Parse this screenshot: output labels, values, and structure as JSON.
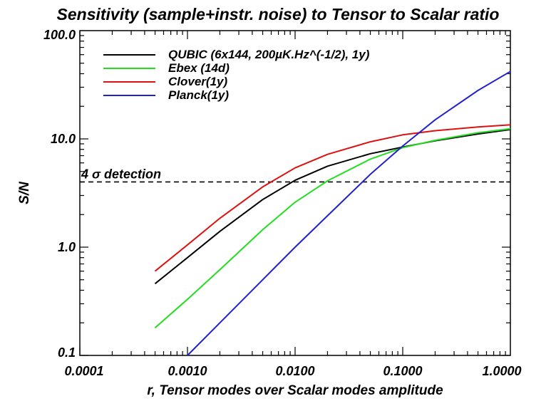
{
  "chart_data": {
    "type": "line",
    "title": "Sensitivity (sample+instr. noise) to Tensor to Scalar ratio",
    "xlabel": "r, Tensor modes over Scalar modes amplitude",
    "ylabel": "S/N",
    "x_scale": "log",
    "y_scale": "log",
    "xlim": [
      0.0001,
      1.0
    ],
    "ylim": [
      0.1,
      100.0
    ],
    "x_ticks": [
      0.0001,
      0.001,
      0.01,
      0.1,
      1.0
    ],
    "x_tick_labels": [
      "0.0001",
      "0.0010",
      "0.0100",
      "0.1000",
      "1.0000"
    ],
    "y_ticks": [
      0.1,
      1.0,
      10.0,
      100.0
    ],
    "y_tick_labels": [
      "0.1",
      "1.0",
      "10.0",
      "100.0"
    ],
    "grid": false,
    "legend_position": "top-left",
    "series": [
      {
        "name": "QUBIC (6x144, 200µK.Hz^(-1/2), 1y)",
        "color": "#000000",
        "x": [
          0.0005,
          0.001,
          0.002,
          0.005,
          0.01,
          0.02,
          0.05,
          0.1,
          0.2,
          0.5,
          1.0
        ],
        "y": [
          0.46,
          0.8,
          1.4,
          2.75,
          4.15,
          5.6,
          7.3,
          8.4,
          9.6,
          11.1,
          12.2
        ]
      },
      {
        "name": "Ebex (14d)",
        "color": "#22dd22",
        "x": [
          0.0005,
          0.001,
          0.002,
          0.005,
          0.01,
          0.02,
          0.05,
          0.1,
          0.2,
          0.5,
          1.0
        ],
        "y": [
          0.18,
          0.33,
          0.62,
          1.45,
          2.6,
          4.1,
          6.5,
          8.3,
          9.7,
          11.4,
          12.4
        ]
      },
      {
        "name": "Clover(1y)",
        "color": "#dd1111",
        "x": [
          0.0005,
          0.001,
          0.002,
          0.005,
          0.01,
          0.02,
          0.05,
          0.1,
          0.2,
          0.5,
          1.0
        ],
        "y": [
          0.6,
          1.05,
          1.85,
          3.6,
          5.4,
          7.2,
          9.4,
          10.9,
          11.9,
          12.9,
          13.5
        ]
      },
      {
        "name": "Planck(1y)",
        "color": "#2222cc",
        "x": [
          0.001,
          0.002,
          0.005,
          0.01,
          0.02,
          0.05,
          0.1,
          0.2,
          0.5,
          1.0
        ],
        "y": [
          0.1,
          0.2,
          0.5,
          1.0,
          1.95,
          4.7,
          8.6,
          15.0,
          28.0,
          42.0
        ]
      }
    ],
    "reference_line": {
      "label": "4 σ detection",
      "y": 4.0,
      "style": "dashed",
      "color": "#000000"
    }
  }
}
